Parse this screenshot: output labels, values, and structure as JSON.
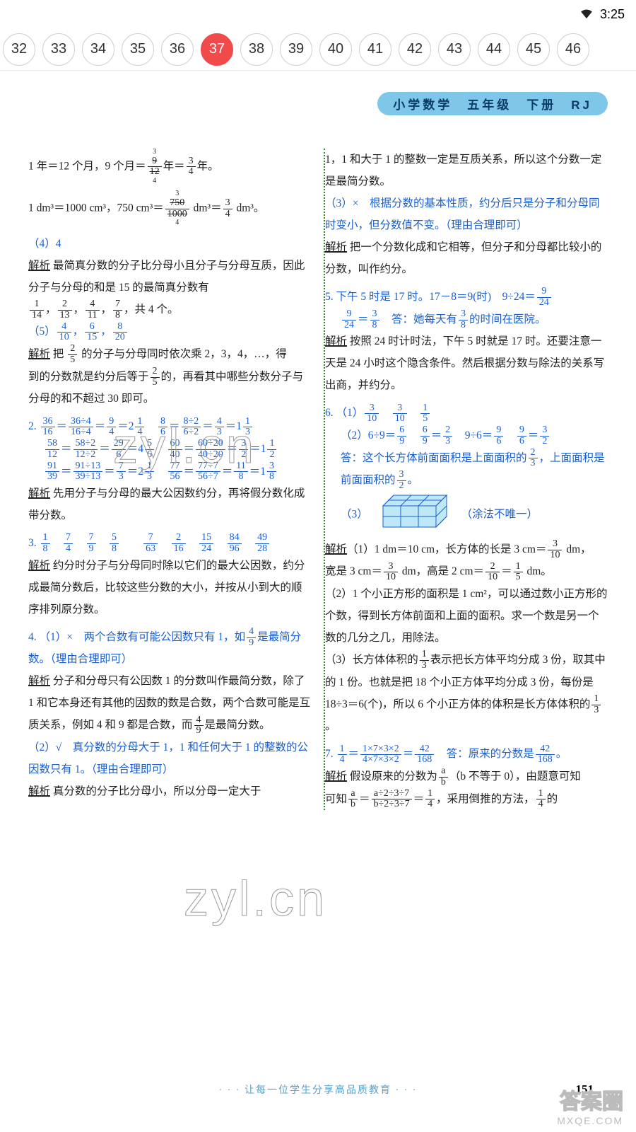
{
  "status": {
    "time": "3:25"
  },
  "nav": {
    "pages": [
      "32",
      "33",
      "34",
      "35",
      "36",
      "37",
      "38",
      "39",
      "40",
      "41",
      "42",
      "43",
      "44",
      "45",
      "46"
    ],
    "active": "37"
  },
  "banner": "小学数学　五年级　下册　RJ",
  "left": {
    "l1a": "1 年＝12 个月，9 个月＝",
    "l1b": "年＝",
    "l1c": "年。",
    "l2a": "1 dm³＝1000 cm³，750 cm³＝",
    "l2b": " dm³＝",
    "l2c": " dm³。",
    "p4": "（4）4",
    "ana": "解析",
    "a4a": " 最简真分数的分子比分母小且分子与分母互质，因此分子与分母的和是 15 的最简真分数有",
    "a4b": "，共 4 个。",
    "p5": "（5）",
    "a5a": " 把 ",
    "a5b": " 的分子与分母同时依次乘 2，3，4，…，得",
    "a5c": "到的分数就是约分后等于",
    "a5d": "的，再看其中哪些分数分子与分母的和不超过 30 即可。",
    "q2": "2.",
    "a2": " 先用分子与分母的最大公因数约分，再将假分数化成带分数。",
    "q3": "3.",
    "a3": " 约分时分子与分母同时除以它们的最大公因数，约分成最简分数后，比较这些分数的大小，并按从小到大的顺序排列原分数。",
    "q4": "4.",
    "q4a": "（1）×　两个合数有可能公因数只有 1，如",
    "q4b": "是最简分数。（理由合理即可）",
    "a4x": " 分子和分母只有公因数 1 的分数叫作最简分数，除了 1 和它本身还有其他的因数的数是合数，两个合数可能是互质关系，例如 4 和 9 都是合数，而",
    "a4y": "是最简分数。",
    "q4c": "（2）√　真分数的分母大于 1，1 和任何大于 1 的整数的公因数只有 1。（理由合理即可）",
    "a4z": " 真分数的分子比分母小，所以分母一定大于"
  },
  "right": {
    "r1": "1，1 和大于 1 的整数一定是互质关系，所以这个分数一定是最简分数。",
    "r2": "（3）×　根据分数的基本性质，约分后只是分子和分母同时变小，但分数值不变。（理由合理即可）",
    "ana": "解析",
    "r3": " 把一个分数化成和它相等，但分子和分母都比较小的分数，叫作约分。",
    "q5": "5.",
    "q5a": " 下午 5 时是 17 时。17－8＝9(时)　9÷24＝",
    "q5b": "　答：她每天有",
    "q5c": "的时间在医院。",
    "r5": " 按照 24 时计时法，下午 5 时就是 17 时。还要注意一天是 24 小时这个隐含条件。然后根据分数与除法的关系写出商，并约分。",
    "q6": "6.",
    "q6a": "（1）",
    "q6b": "（2）6÷9＝",
    "q6c": "　9÷6＝",
    "q6d": "答：这个长方体前面面积是上面面积的",
    "q6e": "，上面面积是前面面积的",
    "q6f": "。",
    "q6g": "（3）",
    "q6h": "（涂法不唯一）",
    "r6a": "（1）1 dm＝10 cm，长方体的长是 3 cm＝",
    "r6b": " dm，",
    "r6c": "宽是 3 cm＝",
    "r6d": " dm，高是 2 cm＝",
    "r6e": " dm。",
    "r6f": "（2）1 个小正方形的面积是 1 cm²，可以通过数小正方形的个数，得到长方体前面和上面的面积。求一个数是另一个数的几分之几，用除法。",
    "r6g": "（3）长方体体积的",
    "r6h": "表示把长方体平均分成 3 份，取其中的 1 份。也就是把 18 个小正方体平均分成 3 份，每份是18÷3＝6(个)，所以 6 个小正方体的体积是长方体体积的",
    "r6i": "。",
    "q7": "7.",
    "q7a": "　答：原来的分数是",
    "q7b": "。",
    "r7a": " 假设原来的分数为",
    "r7b": "（b 不等于 0），由题意可知",
    "r7c": "，采用倒推的方法，",
    "r7d": "的"
  },
  "footer": "· · · 让每一位学生分享高品质教育 · · ·",
  "pageno": "151",
  "watermark": "zyl.cn",
  "logo": {
    "t1": "答案圈",
    "t2": "MXQE.COM"
  }
}
